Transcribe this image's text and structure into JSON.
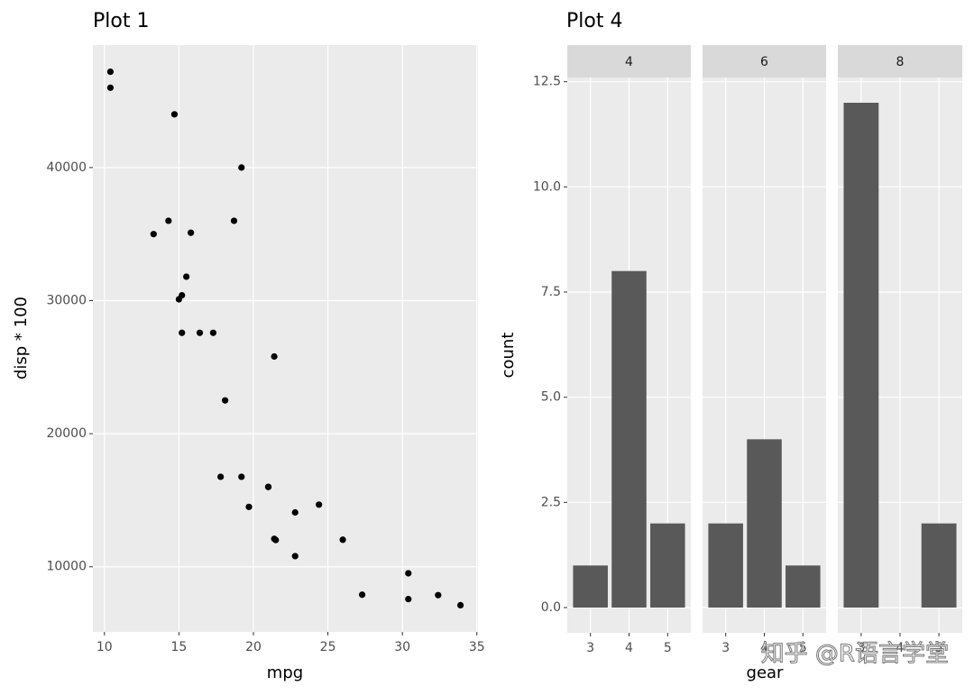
{
  "chart_data": [
    {
      "type": "scatter",
      "title": "Plot 1",
      "x_label": "mpg",
      "y_label": "disp * 100",
      "color": "#000000",
      "grid": true,
      "x": [
        21,
        21,
        22.8,
        21.4,
        18.7,
        18.1,
        14.3,
        24.4,
        22.8,
        19.2,
        17.8,
        16.4,
        17.3,
        15.2,
        10.4,
        10.4,
        14.7,
        32.4,
        30.4,
        33.9,
        21.5,
        15.5,
        15.2,
        13.3,
        19.2,
        27.3,
        26,
        30.4,
        15.8,
        19.7,
        15,
        21.4
      ],
      "y": [
        16000,
        16000,
        10800,
        25800,
        36000,
        22500,
        36000,
        14670,
        14080,
        16760,
        16760,
        27580,
        27580,
        27580,
        47200,
        46000,
        44000,
        7870,
        7570,
        7110,
        12010,
        31800,
        30400,
        35000,
        40000,
        7900,
        12030,
        9510,
        35100,
        14500,
        30100,
        12100
      ],
      "xlim": [
        9.225,
        35.075
      ],
      "ylim": [
        5105.5,
        49204.5
      ],
      "xticks": [
        10,
        15,
        20,
        25,
        30,
        35
      ],
      "yticks": [
        10000,
        20000,
        30000,
        40000
      ]
    },
    {
      "type": "bar",
      "title": "Plot 4",
      "x_label": "gear",
      "y_label": "count",
      "color": "#595959",
      "grid": true,
      "facets": [
        {
          "label": "4",
          "categories": [
            "3",
            "4",
            "5"
          ],
          "values": [
            1,
            8,
            2
          ]
        },
        {
          "label": "6",
          "categories": [
            "3",
            "4",
            "5"
          ],
          "values": [
            2,
            4,
            1
          ]
        },
        {
          "label": "8",
          "categories": [
            "3",
            "4",
            "5"
          ],
          "values": [
            12,
            null,
            2
          ]
        }
      ],
      "ylim": [
        -0.6,
        12.6
      ],
      "yticks": [
        {
          "value": 0,
          "label": "0.0"
        },
        2.5,
        {
          "value": 5,
          "label": "5.0"
        },
        7.5,
        {
          "value": 10,
          "label": "10.0"
        },
        12.5
      ]
    }
  ],
  "watermark": "知乎 @R语言学堂"
}
